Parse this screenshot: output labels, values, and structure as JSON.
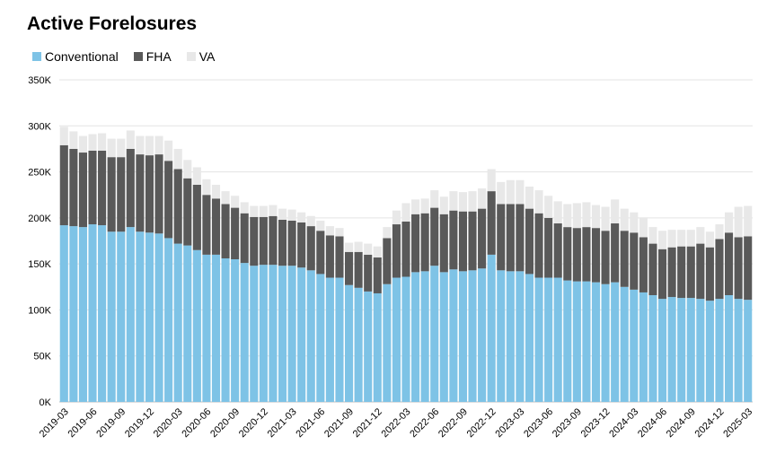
{
  "chart_data": {
    "type": "bar",
    "stacked": true,
    "title": "Active Forelosures",
    "legend_position": "top-left",
    "grid": true,
    "xlabel": "",
    "ylabel": "",
    "ylim": [
      0,
      350000
    ],
    "y_ticks": [
      "0K",
      "50K",
      "100K",
      "150K",
      "200K",
      "250K",
      "300K",
      "350K"
    ],
    "x_tick_labels": [
      "2019-03",
      "2019-06",
      "2019-09",
      "2019-12",
      "2020-03",
      "2020-06",
      "2020-09",
      "2020-12",
      "2021-03",
      "2021-06",
      "2021-09",
      "2021-12",
      "2022-03",
      "2022-06",
      "2022-09",
      "2022-12",
      "2023-03",
      "2023-06",
      "2023-09",
      "2023-12",
      "2024-03",
      "2024-06",
      "2024-09",
      "2024-12",
      "2025-03"
    ],
    "categories": [
      "2019-03",
      "2019-04",
      "2019-05",
      "2019-06",
      "2019-07",
      "2019-08",
      "2019-09",
      "2019-10",
      "2019-11",
      "2019-12",
      "2020-01",
      "2020-02",
      "2020-03",
      "2020-04",
      "2020-05",
      "2020-06",
      "2020-07",
      "2020-08",
      "2020-09",
      "2020-10",
      "2020-11",
      "2020-12",
      "2021-01",
      "2021-02",
      "2021-03",
      "2021-04",
      "2021-05",
      "2021-06",
      "2021-07",
      "2021-08",
      "2021-09",
      "2021-10",
      "2021-11",
      "2021-12",
      "2022-01",
      "2022-02",
      "2022-03",
      "2022-04",
      "2022-05",
      "2022-06",
      "2022-07",
      "2022-08",
      "2022-09",
      "2022-10",
      "2022-11",
      "2022-12",
      "2023-01",
      "2023-02",
      "2023-03",
      "2023-04",
      "2023-05",
      "2023-06",
      "2023-07",
      "2023-08",
      "2023-09",
      "2023-10",
      "2023-11",
      "2023-12",
      "2024-01",
      "2024-02",
      "2024-03",
      "2024-04",
      "2024-05",
      "2024-06",
      "2024-07",
      "2024-08",
      "2024-09",
      "2024-10",
      "2024-11",
      "2024-12",
      "2025-01",
      "2025-02",
      "2025-03"
    ],
    "series": [
      {
        "name": "Conventional",
        "color": "#7ec3e6",
        "values": [
          192000,
          191000,
          190000,
          193000,
          192000,
          185000,
          185000,
          190000,
          185000,
          184000,
          183000,
          178000,
          172000,
          170000,
          165000,
          160000,
          160000,
          156000,
          155000,
          151000,
          148000,
          149000,
          149000,
          148000,
          148000,
          146000,
          143000,
          139000,
          135000,
          135000,
          127000,
          124000,
          120000,
          118000,
          128000,
          135000,
          136000,
          141000,
          142000,
          148000,
          141000,
          144000,
          142000,
          143000,
          145000,
          160000,
          143000,
          142000,
          142000,
          139000,
          135000,
          135000,
          135000,
          132000,
          131000,
          131000,
          130000,
          128000,
          130000,
          125000,
          122000,
          119000,
          116000,
          112000,
          114000,
          113000,
          113000,
          112000,
          110000,
          112000,
          116000,
          112000,
          111000
        ]
      },
      {
        "name": "FHA",
        "color": "#595959",
        "values": [
          87000,
          84000,
          81000,
          80000,
          81000,
          81000,
          81000,
          85000,
          84000,
          84000,
          86000,
          84000,
          81000,
          73000,
          71000,
          65000,
          61000,
          59000,
          56000,
          54000,
          53000,
          52000,
          53000,
          50000,
          49000,
          49000,
          48000,
          47000,
          46000,
          45000,
          36000,
          39000,
          40000,
          39000,
          50000,
          58000,
          60000,
          63000,
          63000,
          63000,
          63000,
          64000,
          65000,
          64000,
          65000,
          69000,
          72000,
          73000,
          73000,
          71000,
          70000,
          65000,
          59000,
          58000,
          58000,
          59000,
          59000,
          58000,
          64000,
          61000,
          62000,
          60000,
          56000,
          54000,
          54000,
          56000,
          56000,
          60000,
          58000,
          65000,
          68000,
          67000,
          69000
        ]
      },
      {
        "name": "VA",
        "color": "#e8e8e8",
        "values": [
          20000,
          19000,
          18000,
          18000,
          19000,
          20000,
          20000,
          20000,
          20000,
          21000,
          20000,
          22000,
          22000,
          20000,
          19000,
          17000,
          15000,
          14000,
          13000,
          12000,
          12000,
          12000,
          12000,
          12000,
          12000,
          11000,
          11000,
          11000,
          10000,
          9000,
          10000,
          11000,
          12000,
          12000,
          12000,
          15000,
          20000,
          16000,
          16000,
          19000,
          19000,
          21000,
          21000,
          22000,
          22000,
          24000,
          24000,
          26000,
          26000,
          24000,
          25000,
          24000,
          24000,
          25000,
          27000,
          27000,
          25000,
          26000,
          26000,
          24000,
          22000,
          21000,
          18000,
          20000,
          19000,
          18000,
          18000,
          18000,
          17000,
          16000,
          22000,
          33000,
          33000
        ]
      }
    ]
  }
}
